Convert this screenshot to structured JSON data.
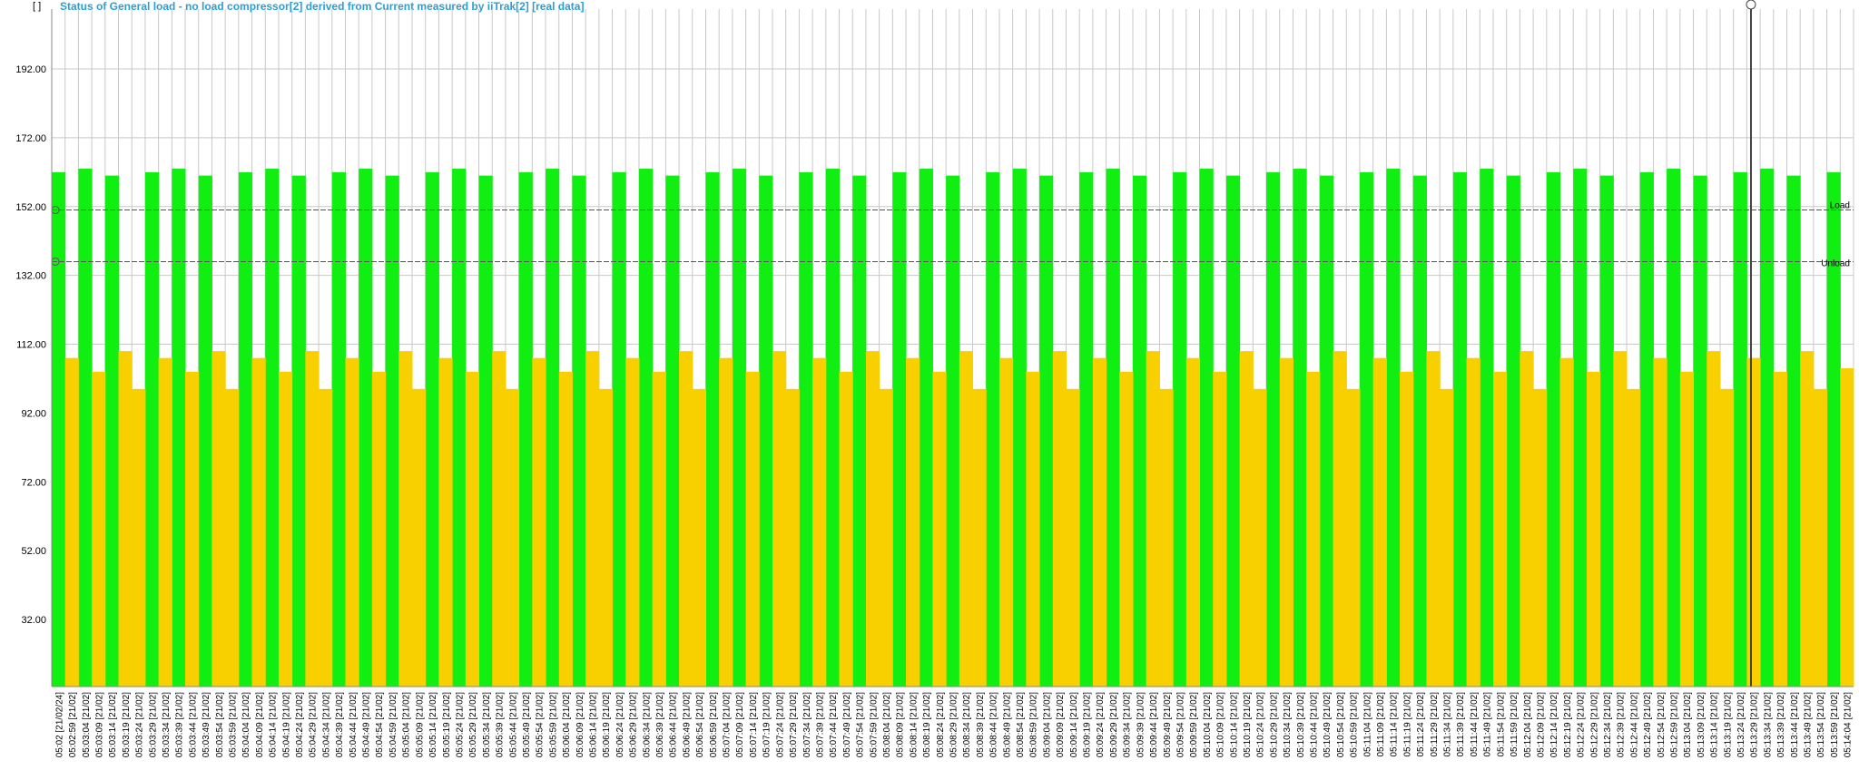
{
  "chart_data": {
    "type": "bar",
    "unit_label": "[ ]",
    "title": "Status of General load - no load compressor[2] derived from Current measured by iiTrak[2] [real data]",
    "categories": [
      "05:02 [21/02/24]",
      "05:02:59 [21/02]",
      "05:03:04 [21/02]",
      "05:03:09 [21/02]",
      "05:03:14 [21/02]",
      "05:03:19 [21/02]",
      "05:03:24 [21/02]",
      "05:03:29 [21/02]",
      "05:03:34 [21/02]",
      "05:03:39 [21/02]",
      "05:03:44 [21/02]",
      "05:03:49 [21/02]",
      "05:03:54 [21/02]",
      "05:03:59 [21/02]",
      "05:04:04 [21/02]",
      "05:04:09 [21/02]",
      "05:04:14 [21/02]",
      "05:04:19 [21/02]",
      "05:04:24 [21/02]",
      "05:04:29 [21/02]",
      "05:04:34 [21/02]",
      "05:04:39 [21/02]",
      "05:04:44 [21/02]",
      "05:04:49 [21/02]",
      "05:04:54 [21/02]",
      "05:04:59 [21/02]",
      "05:05:04 [21/02]",
      "05:05:09 [21/02]",
      "05:05:14 [21/02]",
      "05:05:19 [21/02]",
      "05:05:24 [21/02]",
      "05:05:29 [21/02]",
      "05:05:34 [21/02]",
      "05:05:39 [21/02]",
      "05:05:44 [21/02]",
      "05:05:49 [21/02]",
      "05:05:54 [21/02]",
      "05:05:59 [21/02]",
      "05:06:04 [21/02]",
      "05:06:09 [21/02]",
      "05:06:14 [21/02]",
      "05:06:19 [21/02]",
      "05:06:24 [21/02]",
      "05:06:29 [21/02]",
      "05:06:34 [21/02]",
      "05:06:39 [21/02]",
      "05:06:44 [21/02]",
      "05:06:49 [21/02]",
      "05:06:54 [21/02]",
      "05:06:59 [21/02]",
      "05:07:04 [21/02]",
      "05:07:09 [21/02]",
      "05:07:14 [21/02]",
      "05:07:19 [21/02]",
      "05:07:24 [21/02]",
      "05:07:29 [21/02]",
      "05:07:34 [21/02]",
      "05:07:39 [21/02]",
      "05:07:44 [21/02]",
      "05:07:49 [21/02]",
      "05:07:54 [21/02]",
      "05:07:59 [21/02]",
      "05:08:04 [21/02]",
      "05:08:09 [21/02]",
      "05:08:14 [21/02]",
      "05:08:19 [21/02]",
      "05:08:24 [21/02]",
      "05:08:29 [21/02]",
      "05:08:34 [21/02]",
      "05:08:39 [21/02]",
      "05:08:44 [21/02]",
      "05:08:49 [21/02]",
      "05:08:54 [21/02]",
      "05:08:59 [21/02]",
      "05:09:04 [21/02]",
      "05:09:09 [21/02]",
      "05:09:14 [21/02]",
      "05:09:19 [21/02]",
      "05:09:24 [21/02]",
      "05:09:29 [21/02]",
      "05:09:34 [21/02]",
      "05:09:39 [21/02]",
      "05:09:44 [21/02]",
      "05:09:49 [21/02]",
      "05:09:54 [21/02]",
      "05:09:59 [21/02]",
      "05:10:04 [21/02]",
      "05:10:09 [21/02]",
      "05:10:14 [21/02]",
      "05:10:19 [21/02]",
      "05:10:24 [21/02]",
      "05:10:29 [21/02]",
      "05:10:34 [21/02]",
      "05:10:39 [21/02]",
      "05:10:44 [21/02]",
      "05:10:49 [21/02]",
      "05:10:54 [21/02]",
      "05:10:59 [21/02]",
      "05:11:04 [21/02]",
      "05:11:09 [21/02]",
      "05:11:14 [21/02]",
      "05:11:19 [21/02]",
      "05:11:24 [21/02]",
      "05:11:29 [21/02]",
      "05:11:34 [21/02]",
      "05:11:39 [21/02]",
      "05:11:44 [21/02]",
      "05:11:49 [21/02]",
      "05:11:54 [21/02]",
      "05:11:59 [21/02]",
      "05:12:04 [21/02]",
      "05:12:09 [21/02]",
      "05:12:14 [21/02]",
      "05:12:19 [21/02]",
      "05:12:24 [21/02]",
      "05:12:29 [21/02]",
      "05:12:34 [21/02]",
      "05:12:39 [21/02]",
      "05:12:44 [21/02]",
      "05:12:49 [21/02]",
      "05:12:54 [21/02]",
      "05:12:59 [21/02]",
      "05:13:04 [21/02]",
      "05:13:09 [21/02]",
      "05:13:14 [21/02]",
      "05:13:19 [21/02]",
      "05:13:24 [21/02]",
      "05:13:29 [21/02]",
      "05:13:34 [21/02]",
      "05:13:39 [21/02]",
      "05:13:44 [21/02]",
      "05:13:49 [21/02]",
      "05:13:54 [21/02]",
      "05:13:59 [21/02]",
      "05:14:04 [21/02]"
    ],
    "series": [
      {
        "color": "#11ee11",
        "values": [
          162,
          null,
          163,
          null,
          161,
          null,
          null,
          162,
          null,
          163,
          null,
          161,
          null,
          null,
          162,
          null,
          163,
          null,
          161,
          null,
          null,
          162,
          null,
          163,
          null,
          161,
          null,
          null,
          162,
          null,
          163,
          null,
          161,
          null,
          null,
          162,
          null,
          163,
          null,
          161,
          null,
          null,
          162,
          null,
          163,
          null,
          161,
          null,
          null,
          162,
          null,
          163,
          null,
          161,
          null,
          null,
          162,
          null,
          163,
          null,
          161,
          null,
          null,
          162,
          null,
          163,
          null,
          161,
          null,
          null,
          162,
          null,
          163,
          null,
          161,
          null,
          null,
          162,
          null,
          163,
          null,
          161,
          null,
          null,
          162,
          null,
          163,
          null,
          161,
          null,
          null,
          162,
          null,
          163,
          null,
          161,
          null,
          null,
          162,
          null,
          163,
          null,
          161,
          null,
          null,
          162,
          null,
          163,
          null,
          161,
          null,
          null,
          162,
          null,
          163,
          null,
          161,
          null,
          null,
          162,
          null,
          163,
          null,
          161,
          null,
          null,
          162,
          null,
          163,
          null,
          161,
          null,
          null,
          162,
          null
        ]
      },
      {
        "color": "#f8d000",
        "values": [
          null,
          108,
          null,
          104,
          null,
          110,
          99,
          null,
          108,
          null,
          104,
          null,
          110,
          99,
          null,
          108,
          null,
          104,
          null,
          110,
          99,
          null,
          108,
          null,
          104,
          null,
          110,
          99,
          null,
          108,
          null,
          104,
          null,
          110,
          99,
          null,
          108,
          null,
          104,
          null,
          110,
          99,
          null,
          108,
          null,
          104,
          null,
          110,
          99,
          null,
          108,
          null,
          104,
          null,
          110,
          99,
          null,
          108,
          null,
          104,
          null,
          110,
          99,
          null,
          108,
          null,
          104,
          null,
          110,
          99,
          null,
          108,
          null,
          104,
          null,
          110,
          99,
          null,
          108,
          null,
          104,
          null,
          110,
          99,
          null,
          108,
          null,
          104,
          null,
          110,
          99,
          null,
          108,
          null,
          104,
          null,
          110,
          99,
          null,
          108,
          null,
          104,
          null,
          110,
          99,
          null,
          108,
          null,
          104,
          null,
          110,
          99,
          null,
          108,
          null,
          104,
          null,
          110,
          99,
          null,
          108,
          null,
          104,
          null,
          110,
          99,
          null,
          108,
          null,
          104,
          null,
          110,
          99,
          null,
          105
        ]
      }
    ],
    "thresholds": [
      {
        "label": "Load",
        "value": 151
      },
      {
        "label": "Unload",
        "value": 136
      }
    ],
    "ylim": [
      12.5,
      209.4
    ],
    "yticks": [
      {
        "value": 32,
        "label": "32.00"
      },
      {
        "value": 52,
        "label": "52.00"
      },
      {
        "value": 72,
        "label": "72.00"
      },
      {
        "value": 92,
        "label": "92.00"
      },
      {
        "value": 112,
        "label": "112.00"
      },
      {
        "value": 132,
        "label": "132.00"
      },
      {
        "value": 152,
        "label": "152.00"
      },
      {
        "value": 172,
        "label": "172.00"
      },
      {
        "value": 192,
        "label": "192.00"
      }
    ],
    "grid": true
  }
}
